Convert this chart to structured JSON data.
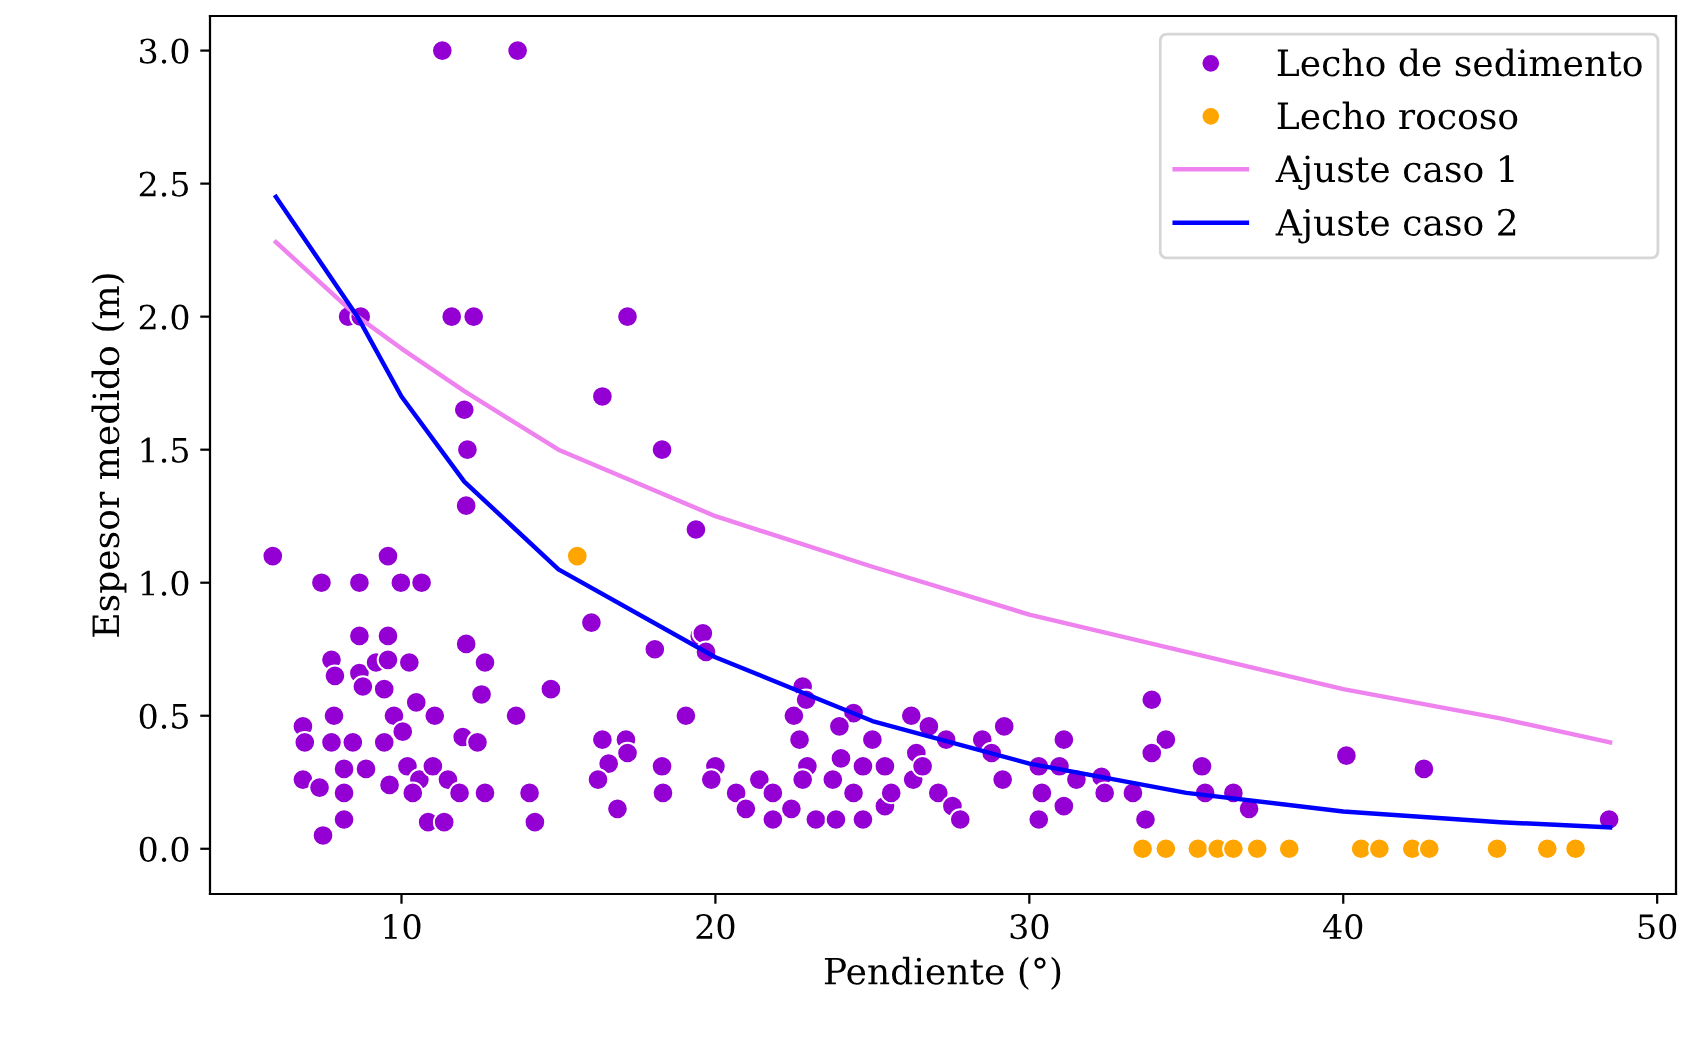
{
  "chart_data": {
    "type": "scatter",
    "xlabel": "Pendiente (°)",
    "ylabel": "Espesor medido (m)",
    "xlim": [
      3.9,
      50.6
    ],
    "ylim": [
      -0.17,
      3.13
    ],
    "xticks": [
      10,
      20,
      30,
      40,
      50
    ],
    "yticks": [
      {
        "value": 0,
        "label": "0.0"
      },
      {
        "value": 0.5,
        "label": "0.5"
      },
      {
        "value": 1,
        "label": "1.0"
      },
      {
        "value": 1.5,
        "label": "1.5"
      },
      {
        "value": 2,
        "label": "2.0"
      },
      {
        "value": 2.5,
        "label": "2.5"
      },
      {
        "value": 3,
        "label": "3.0"
      }
    ],
    "grid": false,
    "legend": "top right",
    "series": [
      {
        "name": "Lecho de sedimento",
        "marker": "circle",
        "color": "#9400d3",
        "x": [
          11.3,
          13.7,
          8.3,
          8.7,
          11.6,
          12.3,
          17.2,
          12.0,
          16.4,
          18.3,
          12.1,
          5.9,
          9.57,
          7.45,
          8.66,
          9.98,
          10.64,
          12.06,
          16.05,
          18.07,
          19.5,
          8.66,
          9.57,
          12.06,
          7.77,
          7.88,
          8.66,
          9.19,
          9.57,
          10.25,
          12.66,
          8.77,
          9.45,
          12.55,
          14.76,
          10.47,
          7.85,
          9.76,
          11.06,
          13.65,
          19.06,
          6.86,
          6.92,
          7.77,
          8.45,
          9.45,
          10.04,
          11.95,
          12.42,
          16.4,
          17.15,
          17.2,
          16.6,
          18.3,
          6.86,
          7.39,
          8.17,
          8.87,
          9.62,
          10.19,
          10.57,
          11.0,
          11.48,
          11.85,
          10.36,
          8.17,
          12.66,
          14.08,
          16.26,
          18.33,
          16.88,
          7.5,
          8.17,
          10.85,
          11.36,
          14.25,
          19.38,
          19.6,
          19.7,
          22.78,
          22.5,
          22.89,
          22.68,
          24.4,
          23.95,
          25.0,
          26.24,
          26.8,
          27.35,
          28.5,
          29.2,
          31.1,
          33.9,
          34.35,
          33.9,
          20.0,
          19.87,
          20.66,
          20.97,
          21.4,
          21.83,
          21.83,
          22.42,
          22.93,
          22.78,
          23.2,
          23.74,
          23.84,
          24.0,
          24.4,
          24.7,
          24.7,
          25.4,
          25.4,
          25.6,
          26.3,
          26.4,
          26.6,
          27.1,
          27.55,
          27.8,
          28.8,
          29.15,
          30.3,
          30.4,
          30.3,
          30.96,
          31.1,
          31.5,
          32.3,
          32.4,
          33.3,
          33.7,
          35.5,
          35.6,
          36.5,
          37.0,
          40.1,
          42.57,
          48.47
        ],
        "values": [
          3.0,
          3.0,
          2.0,
          2.0,
          2.0,
          2.0,
          2.0,
          1.65,
          1.7,
          1.5,
          1.5,
          1.1,
          1.1,
          1.0,
          1.0,
          1.0,
          1.0,
          1.29,
          0.85,
          0.75,
          0.8,
          0.8,
          0.8,
          0.77,
          0.71,
          0.65,
          0.66,
          0.7,
          0.71,
          0.7,
          0.7,
          0.61,
          0.6,
          0.58,
          0.6,
          0.55,
          0.5,
          0.5,
          0.5,
          0.5,
          0.5,
          0.46,
          0.4,
          0.4,
          0.4,
          0.4,
          0.44,
          0.42,
          0.4,
          0.41,
          0.41,
          0.36,
          0.32,
          0.31,
          0.26,
          0.23,
          0.3,
          0.3,
          0.24,
          0.31,
          0.26,
          0.31,
          0.26,
          0.21,
          0.21,
          0.21,
          0.21,
          0.21,
          0.26,
          0.21,
          0.15,
          0.05,
          0.11,
          0.1,
          0.1,
          0.1,
          1.2,
          0.81,
          0.74,
          0.61,
          0.5,
          0.56,
          0.41,
          0.51,
          0.46,
          0.41,
          0.5,
          0.46,
          0.41,
          0.41,
          0.46,
          0.41,
          0.56,
          0.41,
          0.36,
          0.31,
          0.26,
          0.21,
          0.15,
          0.26,
          0.21,
          0.11,
          0.15,
          0.31,
          0.26,
          0.11,
          0.26,
          0.11,
          0.34,
          0.21,
          0.31,
          0.11,
          0.31,
          0.16,
          0.21,
          0.26,
          0.36,
          0.31,
          0.21,
          0.16,
          0.11,
          0.36,
          0.26,
          0.31,
          0.21,
          0.11,
          0.31,
          0.16,
          0.26,
          0.27,
          0.21,
          0.21,
          0.11,
          0.31,
          0.21,
          0.21,
          0.15,
          0.35,
          0.3,
          0.11
        ]
      },
      {
        "name": "Lecho rocoso",
        "marker": "circle",
        "color": "#ffa500",
        "x": [
          15.6,
          33.61,
          34.35,
          35.37,
          36.0,
          36.5,
          37.26,
          38.28,
          40.57,
          41.15,
          42.2,
          42.74,
          44.9,
          46.5,
          47.4
        ],
        "values": [
          1.1,
          0,
          0,
          0,
          0,
          0,
          0,
          0,
          0,
          0,
          0,
          0,
          0,
          0,
          0
        ]
      },
      {
        "name": "Ajuste caso 1",
        "type": "line",
        "color": "#ee82ee",
        "x": [
          6,
          8.6,
          10,
          12,
          15,
          20,
          25,
          30,
          35,
          40,
          45,
          48.5
        ],
        "values": [
          2.28,
          2.0,
          1.88,
          1.72,
          1.5,
          1.25,
          1.06,
          0.88,
          0.74,
          0.6,
          0.49,
          0.4
        ]
      },
      {
        "name": "Ajuste caso 2",
        "type": "line",
        "color": "#0000ff",
        "x": [
          6,
          8.6,
          10,
          12,
          15,
          20,
          25,
          30,
          35,
          40,
          45,
          48.5
        ],
        "values": [
          2.45,
          2.0,
          1.7,
          1.38,
          1.05,
          0.72,
          0.48,
          0.32,
          0.21,
          0.14,
          0.1,
          0.08
        ]
      }
    ]
  }
}
